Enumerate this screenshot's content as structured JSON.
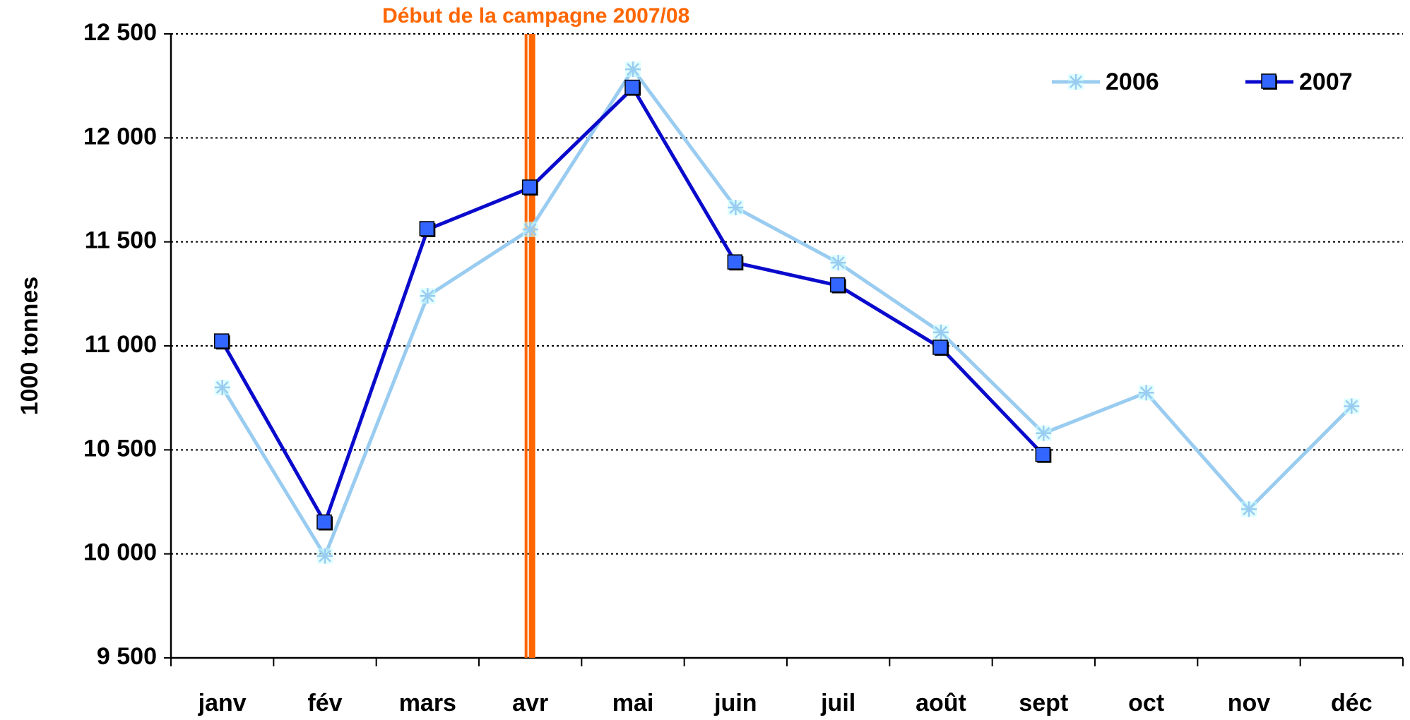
{
  "chart_data": {
    "type": "line",
    "y_label": "1000 tonnes",
    "annotation": {
      "label": "Début de la campagne 2007/08",
      "x": "avr",
      "color": "#ff6600"
    },
    "categories": [
      "janv",
      "fév",
      "mars",
      "avr",
      "mai",
      "juin",
      "juil",
      "août",
      "sept",
      "oct",
      "nov",
      "déc"
    ],
    "series": [
      {
        "name": "2006",
        "color": "#99ccf0",
        "marker": "asterisk",
        "values": [
          10800,
          9990,
          11240,
          11560,
          12330,
          11665,
          11400,
          11065,
          10580,
          10775,
          10215,
          10710
        ]
      },
      {
        "name": "2007",
        "color": "#0a0acc",
        "marker": "square",
        "marker_color": "#3366ff",
        "values": [
          11020,
          10150,
          11560,
          11760,
          12240,
          11400,
          11290,
          10990,
          10475,
          null,
          null,
          null
        ]
      }
    ],
    "ylim": [
      9500,
      12500
    ],
    "yticks": [
      {
        "value": 9500,
        "label": "9 500"
      },
      {
        "value": 10000,
        "label": "10 000"
      },
      {
        "value": 10500,
        "label": "10 500"
      },
      {
        "value": 11000,
        "label": "11 000"
      },
      {
        "value": 11500,
        "label": "11 500"
      },
      {
        "value": 12000,
        "label": "12 000"
      },
      {
        "value": 12500,
        "label": "12 500"
      }
    ],
    "grid": true,
    "legend": "upper right"
  }
}
